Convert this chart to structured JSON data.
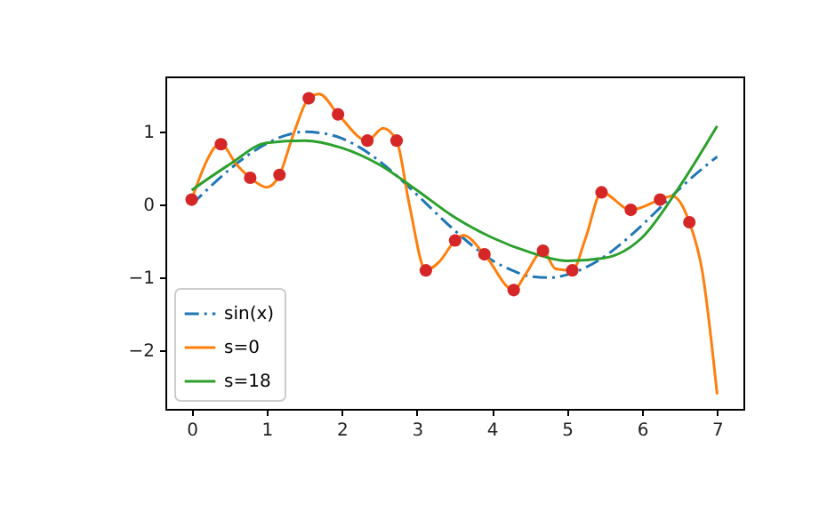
{
  "chart_data": {
    "type": "line",
    "xlim": [
      -0.35,
      7.35
    ],
    "ylim": [
      -2.8,
      1.76
    ],
    "xticks": [
      0,
      1,
      2,
      3,
      4,
      5,
      6,
      7
    ],
    "yticks": [
      -2,
      -1,
      0,
      1
    ],
    "grid": false,
    "legend": "bottom left",
    "series": [
      {
        "name": "sin(x)",
        "color": "#1f77b4",
        "line_style": "dashdot",
        "x": [
          0,
          0.25,
          0.5,
          0.75,
          1,
          1.25,
          1.5,
          1.75,
          2,
          2.25,
          2.5,
          2.75,
          3,
          3.25,
          3.5,
          3.75,
          4,
          4.25,
          4.5,
          4.75,
          5,
          5.25,
          5.5,
          5.75,
          6,
          6.25,
          6.5,
          6.75,
          7
        ],
        "values": [
          0,
          0.25,
          0.48,
          0.68,
          0.84,
          0.95,
          1,
          0.98,
          0.91,
          0.78,
          0.6,
          0.38,
          0.14,
          -0.11,
          -0.35,
          -0.57,
          -0.76,
          -0.89,
          -0.98,
          -1,
          -0.96,
          -0.86,
          -0.71,
          -0.51,
          -0.28,
          -0.03,
          0.22,
          0.45,
          0.66
        ]
      },
      {
        "name": "s=0",
        "color": "#ff7f0e",
        "line_style": "solid",
        "x": [
          0,
          0.2,
          0.3,
          0.39,
          0.6,
          0.78,
          1.0,
          1.17,
          1.35,
          1.56,
          1.7,
          1.95,
          2.34,
          2.55,
          2.73,
          2.9,
          3.12,
          3.3,
          3.51,
          3.62,
          3.9,
          4.29,
          4.45,
          4.68,
          4.85,
          5.07,
          5.25,
          5.46,
          5.85,
          6.24,
          6.4,
          6.63,
          6.8,
          7.0
        ],
        "values": [
          0.07,
          0.6,
          0.78,
          0.83,
          0.55,
          0.37,
          0.24,
          0.41,
          0.95,
          1.46,
          1.52,
          1.24,
          0.88,
          1.05,
          0.88,
          0.0,
          -0.9,
          -0.78,
          -0.49,
          -0.42,
          -0.68,
          -1.17,
          -0.95,
          -0.63,
          -0.88,
          -0.9,
          -0.45,
          0.17,
          -0.07,
          0.07,
          0.12,
          -0.24,
          -0.9,
          -2.6
        ]
      },
      {
        "name": "s=18",
        "color": "#2ca02c",
        "line_style": "solid",
        "x": [
          0,
          0.5,
          1,
          1.5,
          2,
          2.5,
          3,
          3.5,
          4,
          4.5,
          5,
          5.5,
          6,
          6.5,
          7
        ],
        "values": [
          0.2,
          0.55,
          0.85,
          0.88,
          0.78,
          0.55,
          0.2,
          -0.17,
          -0.45,
          -0.65,
          -0.77,
          -0.73,
          -0.45,
          0.25,
          1.08
        ]
      },
      {
        "type": "scatter",
        "color": "#d62728",
        "marker": "circle",
        "x": [
          0,
          0.39,
          0.78,
          1.17,
          1.56,
          1.95,
          2.34,
          2.73,
          3.12,
          3.51,
          3.9,
          4.29,
          4.68,
          5.07,
          5.46,
          5.85,
          6.24,
          6.63
        ],
        "values": [
          0.07,
          0.83,
          0.37,
          0.41,
          1.46,
          1.24,
          0.88,
          0.88,
          -0.9,
          -0.49,
          -0.68,
          -1.17,
          -0.63,
          -0.9,
          0.17,
          -0.07,
          0.07,
          -0.24
        ]
      }
    ]
  }
}
